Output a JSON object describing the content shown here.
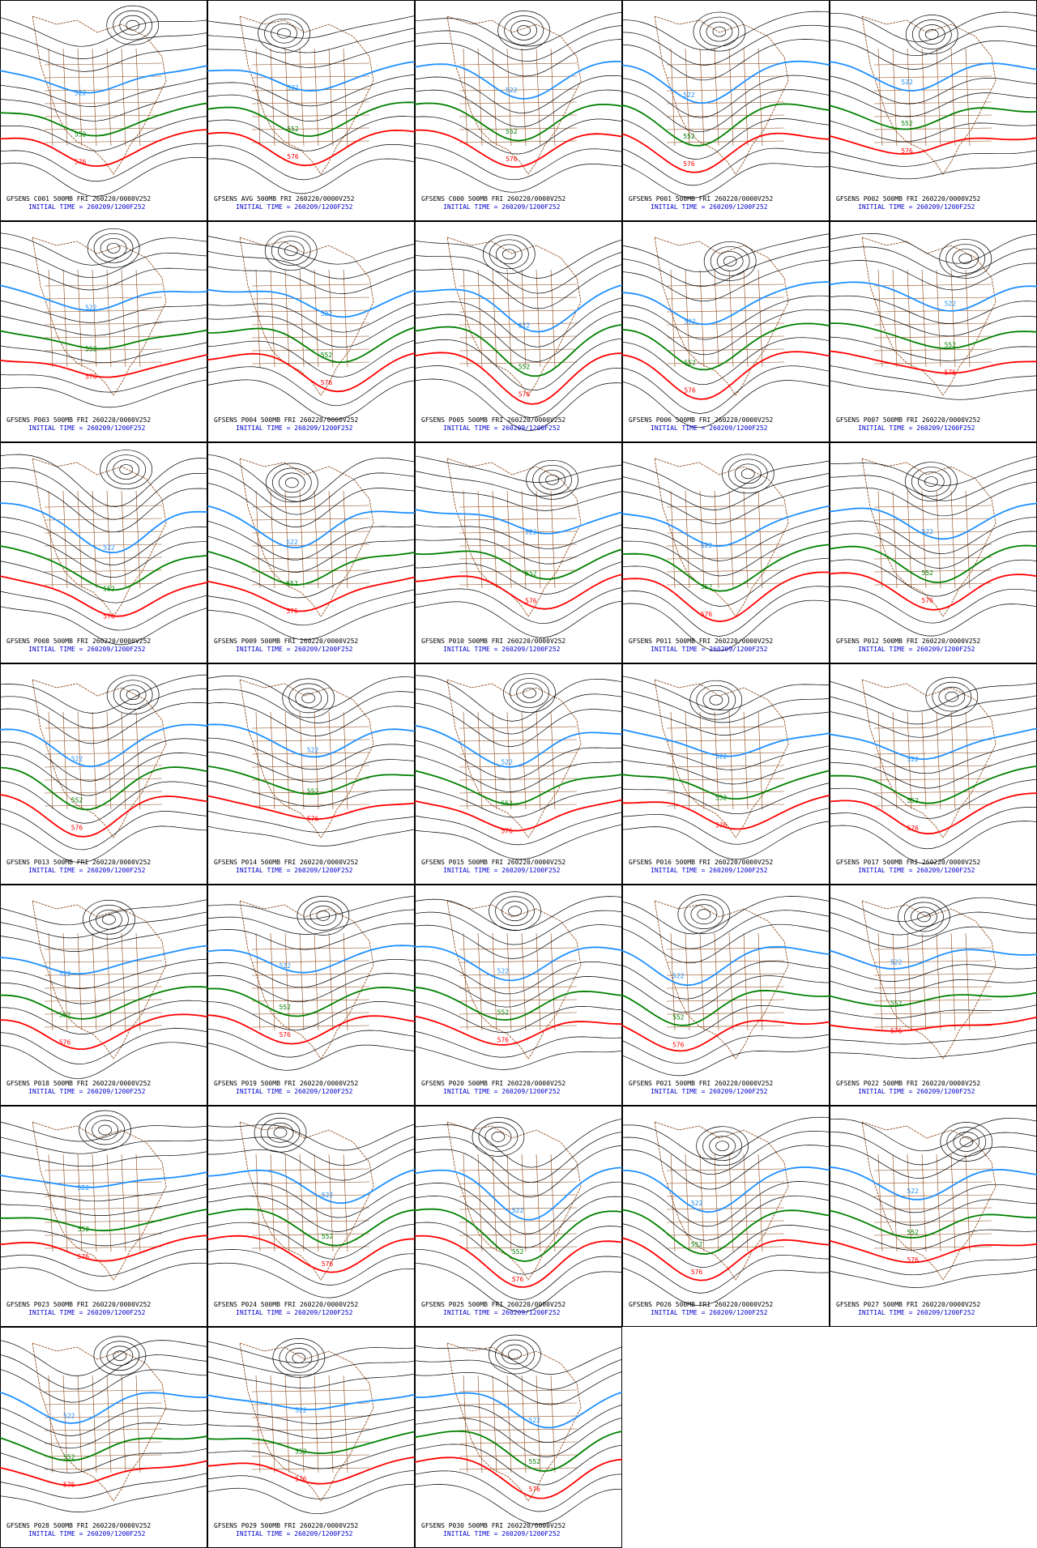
{
  "panels": [
    {
      "caption": "GFSENS C001 500MB FRI 260220/0000V252",
      "initial_time": "INITIAL TIME = 260209/1200F252",
      "contour_labels": [
        "522",
        "552",
        "576"
      ]
    },
    {
      "caption": "GFSENS AVG 500MB FRI 260220/0000V252",
      "initial_time": "INITIAL TIME = 260209/1200F252",
      "contour_labels": [
        "522",
        "552",
        "576"
      ]
    },
    {
      "caption": "GFSENS C000 500MB FRI 260220/0000V252",
      "initial_time": "INITIAL TIME = 260209/1200F252",
      "contour_labels": [
        "522",
        "552",
        "576"
      ]
    },
    {
      "caption": "GFSENS P001 500MB FRI 260220/0000V252",
      "initial_time": "INITIAL TIME = 260209/1200F252",
      "contour_labels": [
        "522",
        "552",
        "576"
      ]
    },
    {
      "caption": "GFSENS P002 500MB FRI 260220/0000V252",
      "initial_time": "INITIAL TIME = 260209/1200F252",
      "contour_labels": [
        "522",
        "552",
        "576"
      ]
    },
    {
      "caption": "GFSENS P003 500MB FRI 260220/0000V252",
      "initial_time": "INITIAL TIME = 260209/1200F252",
      "contour_labels": [
        "522",
        "552",
        "576"
      ]
    },
    {
      "caption": "GFSENS P004 500MB FRI 260220/0000V252",
      "initial_time": "INITIAL TIME = 260209/1200F252",
      "contour_labels": [
        "522",
        "552",
        "576"
      ]
    },
    {
      "caption": "GFSENS P005 500MB FRI 260220/0000V252",
      "initial_time": "INITIAL TIME = 260209/1200F252",
      "contour_labels": [
        "522",
        "552",
        "576"
      ]
    },
    {
      "caption": "GFSENS P006 500MB FRI 260220/0000V252",
      "initial_time": "INITIAL TIME = 260209/1200F252",
      "contour_labels": [
        "522",
        "552",
        "576"
      ]
    },
    {
      "caption": "GFSENS P007 500MB FRI 260220/0000V252",
      "initial_time": "INITIAL TIME = 260209/1200F252",
      "contour_labels": [
        "522",
        "552",
        "576"
      ]
    },
    {
      "caption": "GFSENS P008 500MB FRI 260220/0000V252",
      "initial_time": "INITIAL TIME = 260209/1200F252",
      "contour_labels": [
        "522",
        "552",
        "576"
      ]
    },
    {
      "caption": "GFSENS P009 500MB FRI 260220/0000V252",
      "initial_time": "INITIAL TIME = 260209/1200F252",
      "contour_labels": [
        "522",
        "552",
        "576"
      ]
    },
    {
      "caption": "GFSENS P010 500MB FRI 260220/0000V252",
      "initial_time": "INITIAL TIME = 260209/1200F252",
      "contour_labels": [
        "522",
        "552",
        "576"
      ]
    },
    {
      "caption": "GFSENS P011 500MB FRI 260220/0000V252",
      "initial_time": "INITIAL TIME = 260209/1200F252",
      "contour_labels": [
        "522",
        "552",
        "576"
      ]
    },
    {
      "caption": "GFSENS P012 500MB FRI 260220/0000V252",
      "initial_time": "INITIAL TIME = 260209/1200F252",
      "contour_labels": [
        "522",
        "552",
        "576"
      ]
    },
    {
      "caption": "GFSENS P013 500MB FRI 260220/0000V252",
      "initial_time": "INITIAL TIME = 260209/1200F252",
      "contour_labels": [
        "522",
        "552",
        "576"
      ]
    },
    {
      "caption": "GFSENS P014 500MB FRI 260220/0000V252",
      "initial_time": "INITIAL TIME = 260209/1200F252",
      "contour_labels": [
        "522",
        "552",
        "576"
      ]
    },
    {
      "caption": "GFSENS P015 500MB FRI 260220/0000V252",
      "initial_time": "INITIAL TIME = 260209/1200F252",
      "contour_labels": [
        "522",
        "552",
        "576"
      ]
    },
    {
      "caption": "GFSENS P016 500MB FRI 260220/0000V252",
      "initial_time": "INITIAL TIME = 260209/1200F252",
      "contour_labels": [
        "522",
        "552",
        "576"
      ]
    },
    {
      "caption": "GFSENS P017 500MB FRI 260220/0000V252",
      "initial_time": "INITIAL TIME = 260209/1200F252",
      "contour_labels": [
        "522",
        "552",
        "576"
      ]
    },
    {
      "caption": "GFSENS P018 500MB FRI 260220/0000V252",
      "initial_time": "INITIAL TIME = 260209/1200F252",
      "contour_labels": [
        "522",
        "552",
        "576"
      ]
    },
    {
      "caption": "GFSENS P019 500MB FRI 260220/0000V252",
      "initial_time": "INITIAL TIME = 260209/1200F252",
      "contour_labels": [
        "522",
        "552",
        "576"
      ]
    },
    {
      "caption": "GFSENS P020 500MB FRI 260220/0000V252",
      "initial_time": "INITIAL TIME = 260209/1200F252",
      "contour_labels": [
        "522",
        "552",
        "576"
      ]
    },
    {
      "caption": "GFSENS P021 500MB FRI 260220/0000V252",
      "initial_time": "INITIAL TIME = 260209/1200F252",
      "contour_labels": [
        "522",
        "552",
        "576"
      ]
    },
    {
      "caption": "GFSENS P022 500MB FRI 260220/0000V252",
      "initial_time": "INITIAL TIME = 260209/1200F252",
      "contour_labels": [
        "522",
        "552",
        "576"
      ]
    },
    {
      "caption": "GFSENS P023 500MB FRI 260220/0000V252",
      "initial_time": "INITIAL TIME = 260209/1200F252",
      "contour_labels": [
        "522",
        "552",
        "576"
      ]
    },
    {
      "caption": "GFSENS P024 500MB FRI 260220/0000V252",
      "initial_time": "INITIAL TIME = 260209/1200F252",
      "contour_labels": [
        "522",
        "552",
        "576"
      ]
    },
    {
      "caption": "GFSENS P025 500MB FRI 260220/0000V252",
      "initial_time": "INITIAL TIME = 260209/1200F252",
      "contour_labels": [
        "522",
        "552",
        "576"
      ]
    },
    {
      "caption": "GFSENS P026 500MB FRI 260220/0000V252",
      "initial_time": "INITIAL TIME = 260209/1200F252",
      "contour_labels": [
        "522",
        "552",
        "576"
      ]
    },
    {
      "caption": "GFSENS P027 500MB FRI 260220/0000V252",
      "initial_time": "INITIAL TIME = 260209/1200F252",
      "contour_labels": [
        "522",
        "552",
        "576"
      ]
    },
    {
      "caption": "GFSENS P028 500MB FRI 260220/0000V252",
      "initial_time": "INITIAL TIME = 260209/1200F252",
      "contour_labels": [
        "522",
        "552",
        "576"
      ]
    },
    {
      "caption": "GFSENS P029 500MB FRI 260220/0000V252",
      "initial_time": "INITIAL TIME = 260209/1200F252",
      "contour_labels": [
        "522",
        "552",
        "576"
      ]
    },
    {
      "caption": "GFSENS P030 500MB FRI 260220/0000V252",
      "initial_time": "INITIAL TIME = 260209/1200F252",
      "contour_labels": [
        "522",
        "552",
        "576"
      ]
    }
  ]
}
